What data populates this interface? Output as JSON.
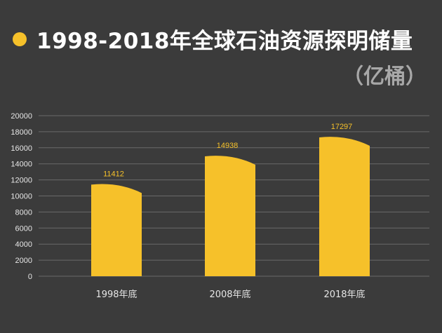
{
  "title": "1998-2018年全球石油资源探明储量",
  "subtitle": "（亿桶）",
  "colors": {
    "background": "#3b3b3b",
    "bar": "#f6c12a",
    "grid": "#6a6a6a",
    "axis_text": "#e6e6e6",
    "label": "#f6c12a"
  },
  "chart_data": {
    "type": "bar",
    "title": "1998-2018年全球石油资源探明储量",
    "subtitle": "（亿桶）",
    "categories": [
      "1998年底",
      "2008年底",
      "2018年底"
    ],
    "values": [
      11412,
      14938,
      17297
    ],
    "ylim": [
      0,
      20000
    ],
    "yticks": [
      0,
      2000,
      4000,
      6000,
      8000,
      10000,
      12000,
      14000,
      16000,
      18000,
      20000
    ],
    "grid": true,
    "data_labels": true
  }
}
